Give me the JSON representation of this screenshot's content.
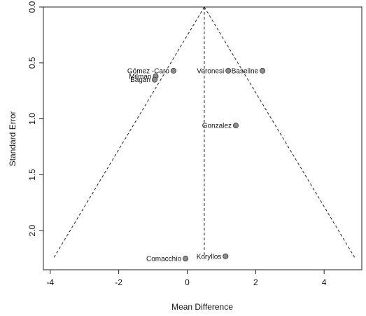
{
  "chart_data": {
    "type": "scatter",
    "subtype": "funnel-plot",
    "title": "",
    "xlabel": "Mean Difference",
    "ylabel": "Standard Error",
    "xlim": [
      -4.2,
      5.1
    ],
    "ylim": [
      0,
      2.35
    ],
    "y_reversed": true,
    "x_ticks": [
      -4,
      -2,
      0,
      2,
      4
    ],
    "x_tick_labels": [
      "-4",
      "-2",
      "0",
      "2",
      "4"
    ],
    "y_ticks": [
      0,
      0.5,
      1,
      1.5,
      2
    ],
    "y_tick_labels": [
      "0.0",
      "0.5",
      "1.0",
      "1.5",
      "2.0"
    ],
    "grid": false,
    "box": true,
    "funnel": {
      "center": 0.5,
      "se_max": 2.25,
      "z": 1.96
    },
    "points": [
      {
        "label": "Gómez -Caro",
        "x": -0.4,
        "y": 0.57
      },
      {
        "label": "Milman",
        "x": -0.92,
        "y": 0.62
      },
      {
        "label": "Bagan",
        "x": -0.95,
        "y": 0.65
      },
      {
        "label": "Veronesi",
        "x": 1.2,
        "y": 0.57
      },
      {
        "label": "Baseline",
        "x": 2.2,
        "y": 0.57
      },
      {
        "label": "Gonzalez",
        "x": 1.42,
        "y": 1.06
      },
      {
        "label": "Koryllos",
        "x": 1.12,
        "y": 2.23
      },
      {
        "label": "Comacchio",
        "x": -0.05,
        "y": 2.25
      }
    ],
    "point_color": "#8c8c8c"
  }
}
